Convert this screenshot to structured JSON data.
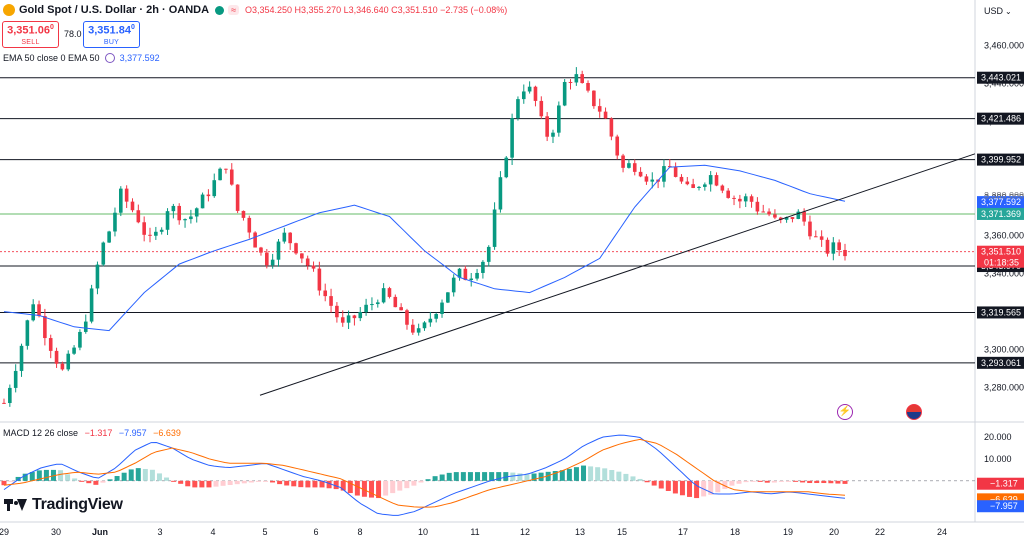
{
  "header": {
    "symbol": "Gold Spot / U.S. Dollar · 2h · OANDA",
    "ohlc": "O3,354.250 H3,355.270 L3,346.640 C3,351.510 −2.735 (−0.08%)",
    "currency": "USD"
  },
  "trade": {
    "sell_price": "3,351.06",
    "sell_sup": "0",
    "sell_label": "SELL",
    "spread": "78.0",
    "buy_price": "3,351.84",
    "buy_sup": "0",
    "buy_label": "BUY"
  },
  "ema": {
    "label": "EMA 50 close 0 EMA 50",
    "value": "3,377.592"
  },
  "macd": {
    "label": "MACD 12 26 close",
    "v1": "−1.317",
    "v2": "−7.957",
    "v3": "−6.639"
  },
  "brand": "TradingView",
  "colors": {
    "up": "#089981",
    "down": "#f23645",
    "ema": "#2962ff",
    "macd": "#2962ff",
    "signal": "#ff6d00",
    "hist_up": "#26a69a",
    "hist_down": "#ff5252",
    "hist_up_light": "#b2dfdb",
    "hist_down_light": "#ffcdd2"
  },
  "chart_data": {
    "type": "candlestick",
    "title": "Gold Spot / U.S. Dollar · 2h · OANDA",
    "x_ticks": [
      "29",
      "30",
      "Jun",
      "3",
      "4",
      "5",
      "6",
      "8",
      "10",
      "11",
      "12",
      "13",
      "15",
      "17",
      "18",
      "19",
      "20",
      "22",
      "24"
    ],
    "y_ticks": [
      3280,
      3300,
      3320,
      3340,
      3360,
      3380,
      3400,
      3420,
      3440,
      3460
    ],
    "y_tick_labels": [
      "3,280.000",
      "3,300.000",
      "3,320.000",
      "3,340.000",
      "3,360.000",
      "3,380.000",
      "3,400.000",
      "3,420.000",
      "3,440.000",
      "3,460.000"
    ],
    "ylim": [
      3263,
      3476
    ],
    "horizontal_levels": [
      3443.021,
      3421.486,
      3399.952,
      3343.97,
      3319.565,
      3293.061
    ],
    "horizontal_level_labels": [
      "3,443.021",
      "3,421.486",
      "3,399.952",
      "3,343.970",
      "3,319.565",
      "3,293.061"
    ],
    "price_tags": [
      {
        "label": "3,377.592",
        "value": 3377.592,
        "color": "#2962ff"
      },
      {
        "label": "3,371.369",
        "value": 3371.369,
        "color": "#26a69a"
      },
      {
        "label": "3,351.510",
        "value": 3351.51,
        "color": "#f23645"
      }
    ],
    "countdown": "01:18:35",
    "hidden_tick_fragment": "3,380.000",
    "green_level": 3371.369,
    "current_price": 3351.51,
    "trendline": [
      {
        "x": 260,
        "y": 3276
      },
      {
        "x": 975,
        "y": 3403
      }
    ],
    "candle_count": 145,
    "close_path": [
      3272,
      3288,
      3306,
      3326,
      3312,
      3300,
      3288,
      3298,
      3309,
      3328,
      3352,
      3364,
      3382,
      3376,
      3368,
      3356,
      3362,
      3376,
      3372,
      3368,
      3375,
      3382,
      3390,
      3398,
      3374,
      3368,
      3356,
      3346,
      3352,
      3360,
      3355,
      3348,
      3340,
      3330,
      3322,
      3312,
      3316,
      3320,
      3324,
      3330,
      3326,
      3318,
      3312,
      3308,
      3316,
      3324,
      3332,
      3340,
      3338,
      3344,
      3350,
      3378,
      3405,
      3432,
      3440,
      3430,
      3412,
      3418,
      3440,
      3445,
      3436,
      3430,
      3424,
      3410,
      3395,
      3398,
      3394,
      3388,
      3392,
      3396,
      3388,
      3382,
      3388,
      3392,
      3388,
      3382,
      3378,
      3380,
      3374,
      3372,
      3366,
      3368,
      3372,
      3366,
      3358,
      3352,
      3354,
      3351.51
    ],
    "ema_path": [
      3320,
      3318,
      3312,
      3310,
      3330,
      3345,
      3352,
      3358,
      3365,
      3372,
      3376,
      3370,
      3352,
      3338,
      3332,
      3330,
      3338,
      3348,
      3375,
      3396,
      3397,
      3394,
      3389,
      3382,
      3378
    ],
    "macd_yticks": [
      20,
      10
    ],
    "macd_ytick_labels": [
      "20.000",
      "10.000"
    ],
    "macd_tags": [
      {
        "label": "−1.317",
        "value": -1.317,
        "color": "#f23645"
      },
      {
        "label": "−6.639",
        "value": -6.639,
        "color": "#ff6d00"
      },
      {
        "label": "−7.957",
        "value": -7.957,
        "color": "#2962ff"
      }
    ],
    "macd_ylim": [
      -17,
      26
    ],
    "macd_series": [
      -4,
      2,
      6,
      8,
      4,
      1,
      6,
      14,
      18,
      15,
      10,
      7,
      6,
      7,
      8,
      5,
      2,
      0,
      -3,
      -10,
      -15,
      -16,
      -14,
      -10,
      -6,
      -3,
      0,
      2,
      3,
      6,
      10,
      16,
      20,
      21,
      20,
      14,
      6,
      -2,
      -6,
      -6,
      -5,
      -6,
      -5,
      -6,
      -7,
      -8
    ],
    "signal_series": [
      -2,
      -1,
      1,
      3,
      4,
      3,
      4,
      8,
      13,
      15,
      13,
      10,
      8,
      8,
      8,
      7,
      5,
      3,
      1,
      -3,
      -7,
      -11,
      -12,
      -12,
      -10,
      -7,
      -4,
      -2,
      0,
      2,
      5,
      9,
      14,
      17,
      19,
      17,
      12,
      6,
      0,
      -4,
      -5,
      -5,
      -5,
      -5,
      -6,
      -6.6
    ]
  }
}
